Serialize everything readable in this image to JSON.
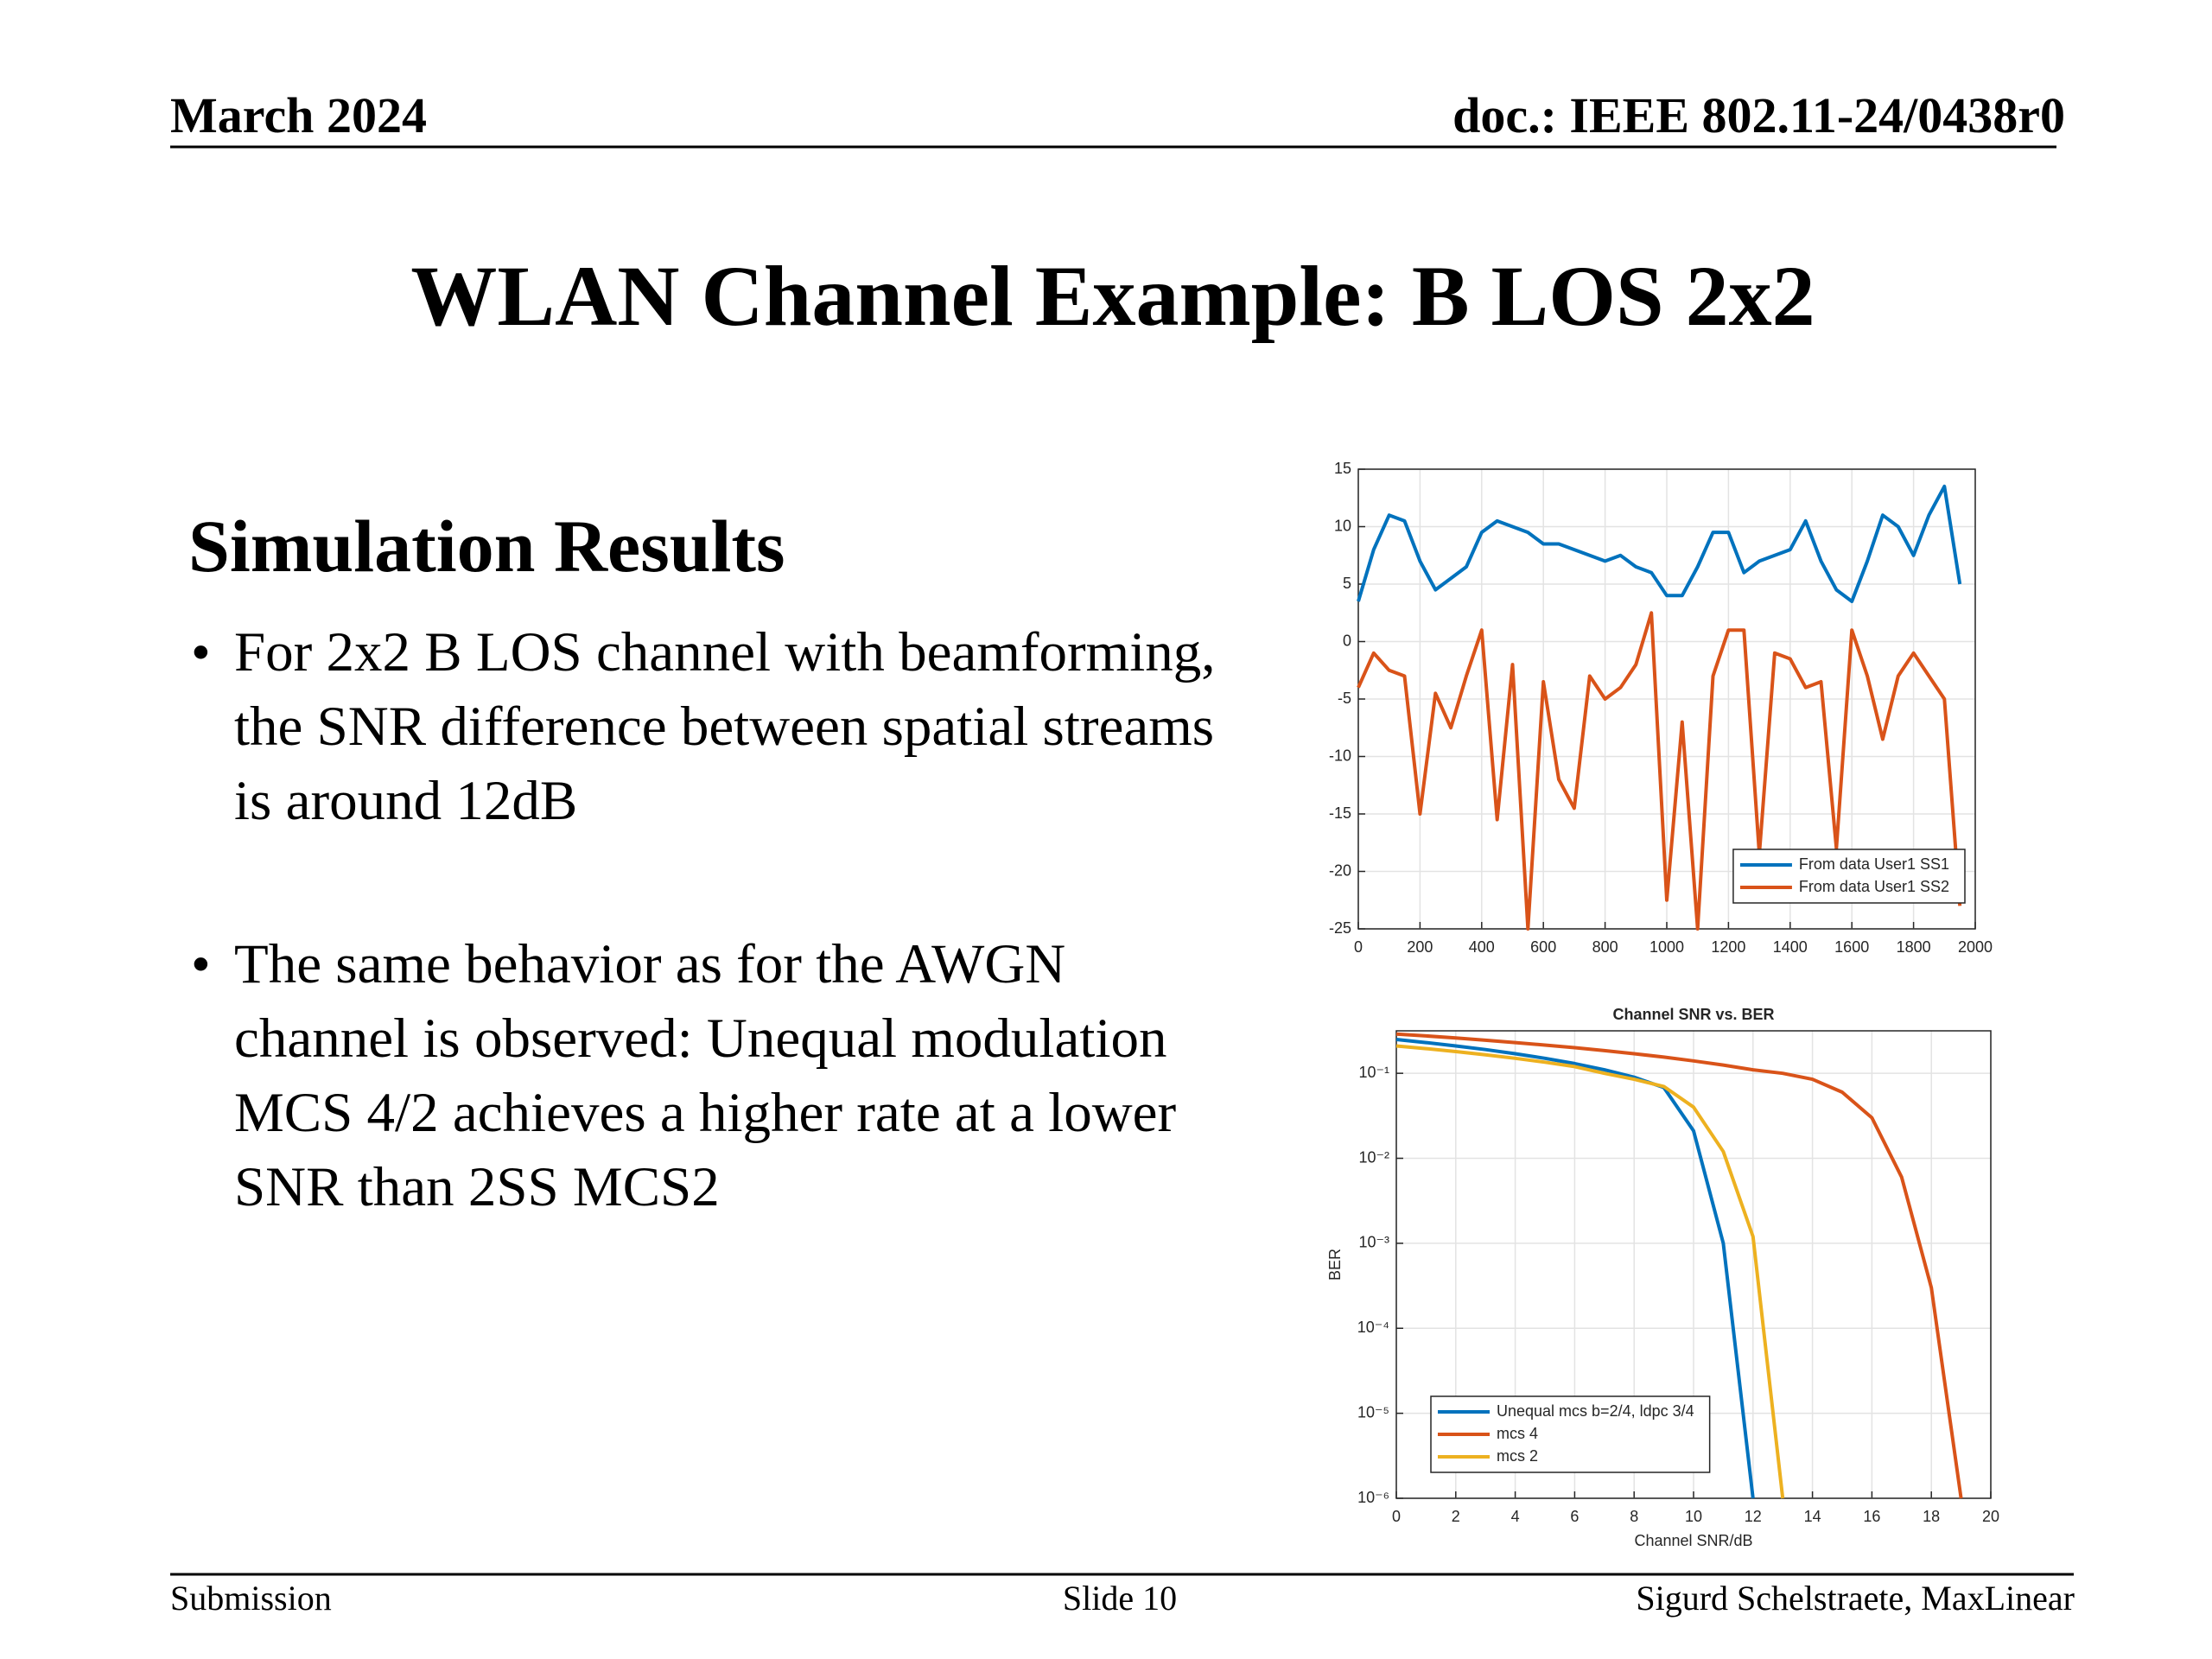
{
  "header": {
    "date": "March 2024",
    "doc": "doc.: IEEE 802.11-24/0438r0"
  },
  "title": "WLAN Channel Example: B LOS 2x2",
  "section": "Simulation Results",
  "bullets": [
    "For 2x2 B LOS channel with beamforming, the SNR difference between spatial streams is around 12dB",
    "The same behavior as for the AWGN channel is observed: Unequal modulation MCS 4/2 achieves a higher rate at a lower SNR than 2SS MCS2"
  ],
  "footer": {
    "left": "Submission",
    "center": "Slide 10",
    "right": "Sigurd Schelstraete, MaxLinear"
  },
  "chart_data": [
    {
      "type": "line",
      "x": [
        0,
        50,
        100,
        150,
        200,
        250,
        300,
        350,
        400,
        450,
        500,
        550,
        600,
        650,
        700,
        750,
        800,
        850,
        900,
        950,
        1000,
        1050,
        1100,
        1150,
        1200,
        1250,
        1300,
        1350,
        1400,
        1450,
        1500,
        1550,
        1600,
        1650,
        1700,
        1750,
        1800,
        1850,
        1900,
        1950
      ],
      "series": [
        {
          "name": "From data User1 SS1",
          "color": "#0072bd",
          "values": [
            3.5,
            8,
            11,
            10.5,
            7,
            4.5,
            5.5,
            6.5,
            9.5,
            10.5,
            10,
            9.5,
            8.5,
            8.5,
            8,
            7.5,
            7,
            7.5,
            6.5,
            6,
            4,
            4,
            6.5,
            9.5,
            9.5,
            6,
            7,
            7.5,
            8,
            10.5,
            7,
            4.5,
            3.5,
            7,
            11,
            10,
            7.5,
            11,
            13.5,
            5
          ]
        },
        {
          "name": "From data User1 SS2",
          "color": "#d95319",
          "values": [
            -4,
            -1,
            -2.5,
            -3,
            -15,
            -4.5,
            -7.5,
            -3,
            1,
            -15.5,
            -2,
            -25,
            -3.5,
            -12,
            -14.5,
            -3,
            -5,
            -4,
            -2,
            2.5,
            -22.5,
            -7,
            -25,
            -3,
            1,
            1,
            -18.5,
            -1,
            -1.5,
            -4,
            -3.5,
            -18,
            1,
            -3,
            -8.5,
            -3,
            -1,
            -3,
            -5,
            -23
          ]
        }
      ],
      "xlim": [
        0,
        2000
      ],
      "xticks": [
        0,
        200,
        400,
        600,
        800,
        1000,
        1200,
        1400,
        1600,
        1800,
        2000
      ],
      "ylim": [
        -25,
        15
      ],
      "yticks": [
        -25,
        -20,
        -15,
        -10,
        -5,
        0,
        5,
        10,
        15
      ],
      "grid": true,
      "legend": "lower right"
    },
    {
      "type": "line",
      "title": "Channel SNR vs. BER",
      "x_label": "Channel SNR/dB",
      "y_label": "BER",
      "x": [
        0,
        1,
        2,
        3,
        4,
        5,
        6,
        7,
        8,
        9,
        10,
        11,
        12,
        13,
        14,
        15,
        16,
        17,
        18,
        19
      ],
      "series": [
        {
          "name": "Unequal mcs b=2/4, ldpc 3/4",
          "color": "#0072bd",
          "values": [
            0.25,
            0.23,
            0.21,
            0.19,
            0.17,
            0.15,
            0.13,
            0.11,
            0.09,
            0.068,
            0.021,
            0.001,
            1e-06,
            null,
            null,
            null,
            null,
            null,
            null,
            null
          ]
        },
        {
          "name": "mcs 4",
          "color": "#d95319",
          "values": [
            0.29,
            0.275,
            0.26,
            0.245,
            0.23,
            0.215,
            0.2,
            0.185,
            0.17,
            0.155,
            0.14,
            0.125,
            0.11,
            0.1,
            0.085,
            0.06,
            0.03,
            0.006,
            0.0003,
            1e-06
          ]
        },
        {
          "name": "mcs 2",
          "color": "#edb120",
          "values": [
            0.21,
            0.195,
            0.18,
            0.165,
            0.15,
            0.135,
            0.12,
            0.1,
            0.085,
            0.07,
            0.04,
            0.012,
            0.0012,
            1e-06,
            null,
            null,
            null,
            null,
            null,
            null
          ]
        }
      ],
      "xlim": [
        0,
        20
      ],
      "xticks": [
        0,
        2,
        4,
        6,
        8,
        10,
        12,
        14,
        16,
        18,
        20
      ],
      "ylim": [
        1e-06,
        0.316
      ],
      "yscale": "log",
      "yticks": [
        {
          "value": 1e-06,
          "label": "10⁻⁶"
        },
        {
          "value": 1e-05,
          "label": "10⁻⁵"
        },
        {
          "value": 0.0001,
          "label": "10⁻⁴"
        },
        {
          "value": 0.001,
          "label": "10⁻³"
        },
        {
          "value": 0.01,
          "label": "10⁻²"
        },
        {
          "value": 0.1,
          "label": "10⁻¹"
        }
      ],
      "grid": true,
      "legend": "lower left"
    }
  ]
}
